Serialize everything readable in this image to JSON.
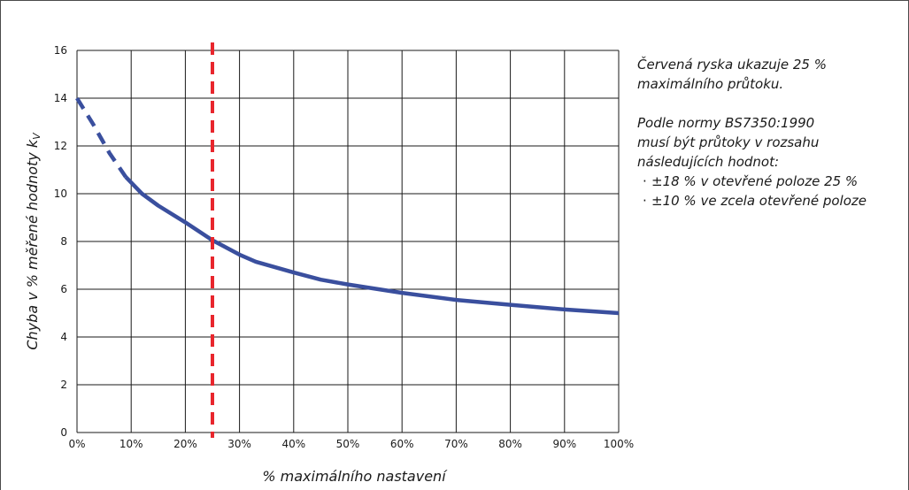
{
  "chart_data": {
    "type": "line",
    "xlabel": "% maximálního nastavení",
    "ylabel": "Chyba v % měřené hodnoty k",
    "ylabel_sub": "V",
    "xlim": [
      0,
      100
    ],
    "ylim": [
      0,
      16
    ],
    "x_ticks": [
      0,
      10,
      20,
      30,
      40,
      50,
      60,
      70,
      80,
      90,
      100
    ],
    "x_tick_labels": [
      "0%",
      "10%",
      "20%",
      "30%",
      "40%",
      "50%",
      "60%",
      "70%",
      "80%",
      "90%",
      "100%"
    ],
    "y_ticks": [
      0,
      2,
      4,
      6,
      8,
      10,
      12,
      14,
      16
    ],
    "y_tick_labels": [
      "0",
      "2",
      "4",
      "6",
      "8",
      "10",
      "12",
      "14",
      "16"
    ],
    "grid": true,
    "series": [
      {
        "style": "dashed",
        "color": "#3a4f9e",
        "x": [
          0,
          3,
          6,
          9
        ],
        "y": [
          14.0,
          12.9,
          11.7,
          10.7
        ]
      },
      {
        "style": "solid",
        "color": "#3a4f9e",
        "x": [
          9,
          12,
          15,
          20,
          25,
          30,
          33,
          40,
          45,
          50,
          60,
          70,
          80,
          90,
          100
        ],
        "y": [
          10.7,
          10.0,
          9.5,
          8.8,
          8.05,
          7.45,
          7.15,
          6.7,
          6.4,
          6.2,
          5.85,
          5.55,
          5.35,
          5.15,
          5.0
        ]
      }
    ],
    "reference_line": {
      "x": 25,
      "color": "#e8262d",
      "style": "dashed"
    }
  },
  "notes": {
    "line1": "Červená ryska ukazuje 25 %",
    "line2": "maximálního průtoku.",
    "line3": "Podle normy BS7350:1990",
    "line4": "musí být průtoky v rozsahu",
    "line5": "následujících hodnot:",
    "bullet_mark": "·",
    "bullets": [
      "±18 % v otevřené poloze 25 %",
      "±10 % ve zcela otevřené poloze"
    ]
  }
}
